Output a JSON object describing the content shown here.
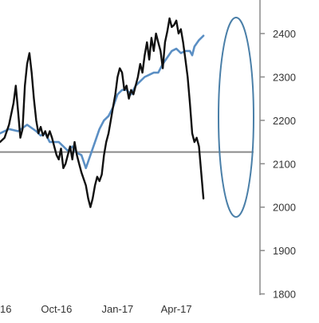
{
  "chart_data": {
    "type": "line",
    "title": "",
    "xlabel": "",
    "ylabel": "",
    "x_tick_labels": [
      "16",
      "Oct-16",
      "Jan-17",
      "Apr-17"
    ],
    "y_ticks": [
      1800,
      1900,
      2000,
      2100,
      2200,
      2300,
      2400
    ],
    "y_tick_labels": [
      "1800",
      "1900",
      "2000",
      "2100",
      "2200",
      "2300",
      "2400"
    ],
    "ylim": [
      1790,
      2470
    ],
    "y_axis_position": "right",
    "grid": false,
    "legend": "none",
    "reference_line": {
      "y": 2127,
      "color": "#8a8a8a"
    },
    "series": [
      {
        "color": "#111111",
        "values": [
          [
            0,
            2150
          ],
          [
            2,
            2160
          ],
          [
            4,
            2190
          ],
          [
            6,
            2240
          ],
          [
            7,
            2280
          ],
          [
            8,
            2220
          ],
          [
            9,
            2160
          ],
          [
            10,
            2180
          ],
          [
            11,
            2280
          ],
          [
            12,
            2330
          ],
          [
            13,
            2355
          ],
          [
            14,
            2310
          ],
          [
            15,
            2250
          ],
          [
            16,
            2200
          ],
          [
            17,
            2170
          ],
          [
            18,
            2185
          ],
          [
            19,
            2165
          ],
          [
            20,
            2175
          ],
          [
            21,
            2160
          ],
          [
            22,
            2175
          ],
          [
            23,
            2160
          ],
          [
            24,
            2140
          ],
          [
            25,
            2120
          ],
          [
            26,
            2110
          ],
          [
            27,
            2135
          ],
          [
            28,
            2090
          ],
          [
            29,
            2100
          ],
          [
            30,
            2120
          ],
          [
            31,
            2140
          ],
          [
            32,
            2110
          ],
          [
            33,
            2150
          ],
          [
            34,
            2120
          ],
          [
            35,
            2100
          ],
          [
            36,
            2080
          ],
          [
            37,
            2065
          ],
          [
            38,
            2050
          ],
          [
            39,
            2020
          ],
          [
            40,
            2000
          ],
          [
            41,
            2020
          ],
          [
            42,
            2050
          ],
          [
            43,
            2070
          ],
          [
            44,
            2060
          ],
          [
            45,
            2075
          ],
          [
            46,
            2120
          ],
          [
            47,
            2150
          ],
          [
            48,
            2170
          ],
          [
            49,
            2200
          ],
          [
            50,
            2230
          ],
          [
            51,
            2260
          ],
          [
            52,
            2300
          ],
          [
            53,
            2320
          ],
          [
            54,
            2310
          ],
          [
            55,
            2270
          ],
          [
            56,
            2280
          ],
          [
            57,
            2250
          ],
          [
            58,
            2270
          ],
          [
            59,
            2260
          ],
          [
            60,
            2280
          ],
          [
            61,
            2300
          ],
          [
            62,
            2330
          ],
          [
            63,
            2310
          ],
          [
            64,
            2350
          ],
          [
            65,
            2380
          ],
          [
            66,
            2340
          ],
          [
            67,
            2390
          ],
          [
            68,
            2360
          ],
          [
            69,
            2400
          ],
          [
            70,
            2380
          ],
          [
            71,
            2360
          ],
          [
            72,
            2320
          ],
          [
            73,
            2380
          ],
          [
            74,
            2405
          ],
          [
            75,
            2435
          ],
          [
            76,
            2415
          ],
          [
            77,
            2420
          ],
          [
            78,
            2430
          ],
          [
            79,
            2400
          ],
          [
            80,
            2410
          ],
          [
            81,
            2380
          ],
          [
            82,
            2340
          ],
          [
            83,
            2300
          ],
          [
            84,
            2240
          ],
          [
            85,
            2170
          ],
          [
            86,
            2150
          ],
          [
            87,
            2160
          ],
          [
            88,
            2140
          ],
          [
            89,
            2080
          ],
          [
            90,
            2020
          ]
        ]
      },
      {
        "color": "#5b8fc4",
        "values": [
          [
            0,
            2170
          ],
          [
            4,
            2180
          ],
          [
            8,
            2175
          ],
          [
            12,
            2190
          ],
          [
            16,
            2175
          ],
          [
            18,
            2165
          ],
          [
            20,
            2170
          ],
          [
            22,
            2150
          ],
          [
            24,
            2150
          ],
          [
            26,
            2150
          ],
          [
            28,
            2140
          ],
          [
            30,
            2130
          ],
          [
            32,
            2140
          ],
          [
            34,
            2125
          ],
          [
            36,
            2120
          ],
          [
            38,
            2090
          ],
          [
            40,
            2120
          ],
          [
            42,
            2150
          ],
          [
            44,
            2180
          ],
          [
            46,
            2200
          ],
          [
            48,
            2210
          ],
          [
            50,
            2230
          ],
          [
            52,
            2260
          ],
          [
            54,
            2270
          ],
          [
            56,
            2270
          ],
          [
            58,
            2260
          ],
          [
            60,
            2280
          ],
          [
            62,
            2290
          ],
          [
            64,
            2300
          ],
          [
            66,
            2305
          ],
          [
            68,
            2310
          ],
          [
            70,
            2310
          ],
          [
            72,
            2330
          ],
          [
            74,
            2345
          ],
          [
            76,
            2360
          ],
          [
            78,
            2365
          ],
          [
            80,
            2355
          ],
          [
            82,
            2360
          ],
          [
            84,
            2360
          ],
          [
            85,
            2350
          ],
          [
            86,
            2370
          ],
          [
            88,
            2385
          ],
          [
            90,
            2395
          ]
        ]
      }
    ],
    "x_tick_positions": [
      0,
      25,
      52,
      78
    ],
    "annotation": {
      "shape": "ellipse",
      "color": "#4a7fa8"
    }
  }
}
